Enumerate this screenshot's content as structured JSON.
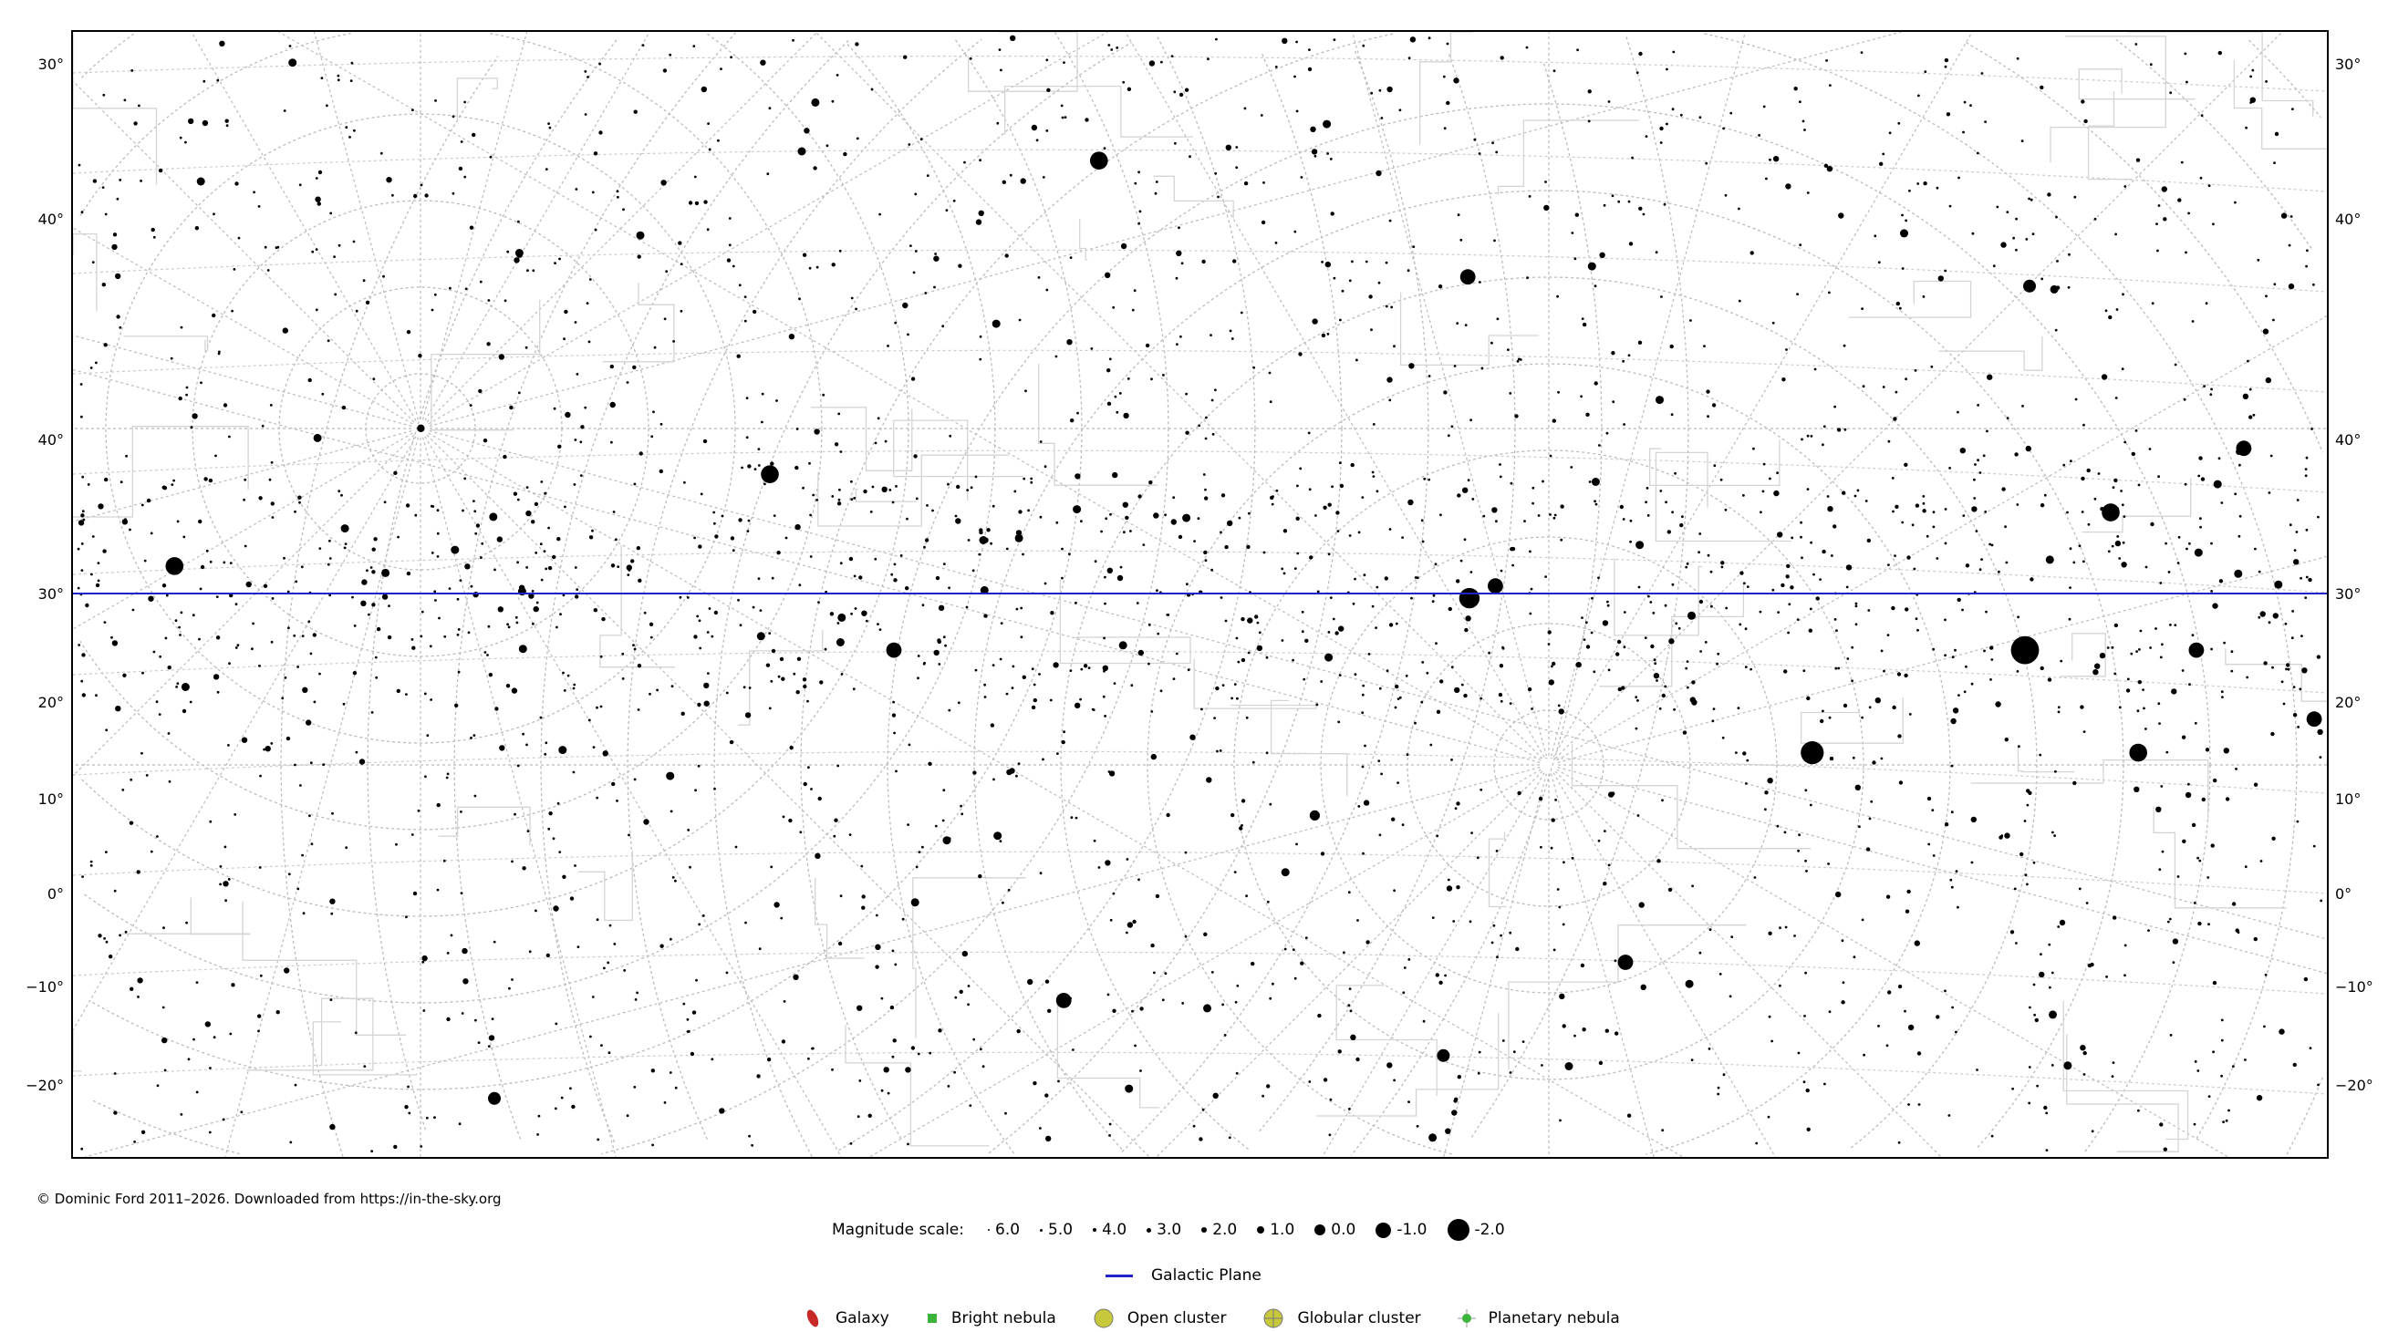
{
  "map": {
    "left_axis_labels": [
      "30°",
      "40°",
      "40°",
      "30°",
      "20°",
      "10°",
      "0°",
      "−10°",
      "−20°"
    ],
    "right_axis_labels": [
      "30°",
      "40°",
      "40°",
      "30°",
      "20°",
      "10°",
      "0°",
      "−10°",
      "−20°"
    ],
    "galactic_plane_color": "#2222cc",
    "grid_color": "#bbbbbb"
  },
  "footer": {
    "copyright": "© Dominic Ford 2011–2026. Downloaded from https://in-the-sky.org"
  },
  "legend": {
    "magnitude_label": "Magnitude scale:",
    "magnitudes": [
      "6.0",
      "5.0",
      "4.0",
      "3.0",
      "2.0",
      "1.0",
      "0.0",
      "-1.0",
      "-2.0"
    ],
    "galactic_plane": "Galactic Plane",
    "objects": [
      {
        "label": "Galaxy",
        "icon": "galaxy-icon",
        "color": "#c82828"
      },
      {
        "label": "Bright nebula",
        "icon": "bright-nebula-icon",
        "color": "#3cb43c"
      },
      {
        "label": "Open cluster",
        "icon": "open-cluster-icon",
        "color": "#c8c83c"
      },
      {
        "label": "Globular cluster",
        "icon": "globular-cluster-icon",
        "color": "#c8c83c"
      },
      {
        "label": "Planetary nebula",
        "icon": "planetary-nebula-icon",
        "color": "#3cb43c"
      }
    ]
  }
}
